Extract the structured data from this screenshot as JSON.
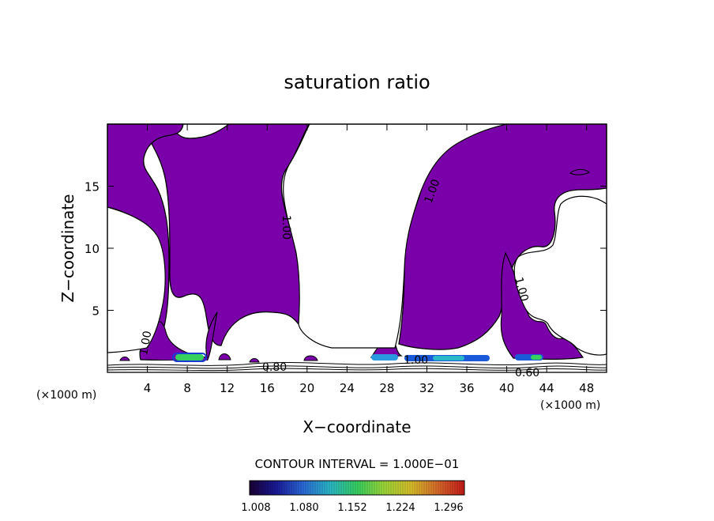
{
  "chart_data": {
    "type": "contour",
    "title": "saturation ratio",
    "xlabel": "X−coordinate",
    "ylabel": "Z−coordinate",
    "x_scale_note": "(×1000 m)",
    "xlim": [
      0,
      50
    ],
    "ylim": [
      0,
      20
    ],
    "xticks": [
      4,
      8,
      12,
      16,
      20,
      24,
      28,
      32,
      36,
      40,
      44,
      48
    ],
    "yticks": [
      5,
      10,
      15
    ],
    "contour_labels": [
      {
        "text": "1.00",
        "x": 17.5,
        "z": 12.5,
        "angle": 90
      },
      {
        "text": "1.00",
        "x": 32.5,
        "z": 15.2,
        "angle": -70
      },
      {
        "text": "1.00",
        "x": 41.0,
        "z": 6.2,
        "angle": 75
      },
      {
        "text": "1.00",
        "x": 3.8,
        "z": 2.5,
        "angle": -80
      },
      {
        "text": "1.00",
        "x": 30.5,
        "z": 1.0,
        "angle": 0
      },
      {
        "text": "0.80",
        "x": 16.5,
        "z": 0.5,
        "angle": 0
      },
      {
        "text": "0.60",
        "x": 42.5,
        "z": 0.1,
        "angle": 0
      }
    ],
    "regions": [
      {
        "name": "left-plume",
        "level": "1.00",
        "color": "#7a00aa"
      },
      {
        "name": "right-plume",
        "level": "1.00",
        "color": "#7a00aa"
      }
    ],
    "contour_interval_label": "CONTOUR INTERVAL = 1.000E−01",
    "colorbar": {
      "labels": [
        "1.008",
        "1.080",
        "1.152",
        "1.224",
        "1.296"
      ],
      "stops": [
        "#1a0033",
        "#1a1a99",
        "#2a6ad8",
        "#2ab8c8",
        "#36d060",
        "#9cd838",
        "#d8c02a",
        "#d86a2a",
        "#c81a1a"
      ]
    }
  }
}
